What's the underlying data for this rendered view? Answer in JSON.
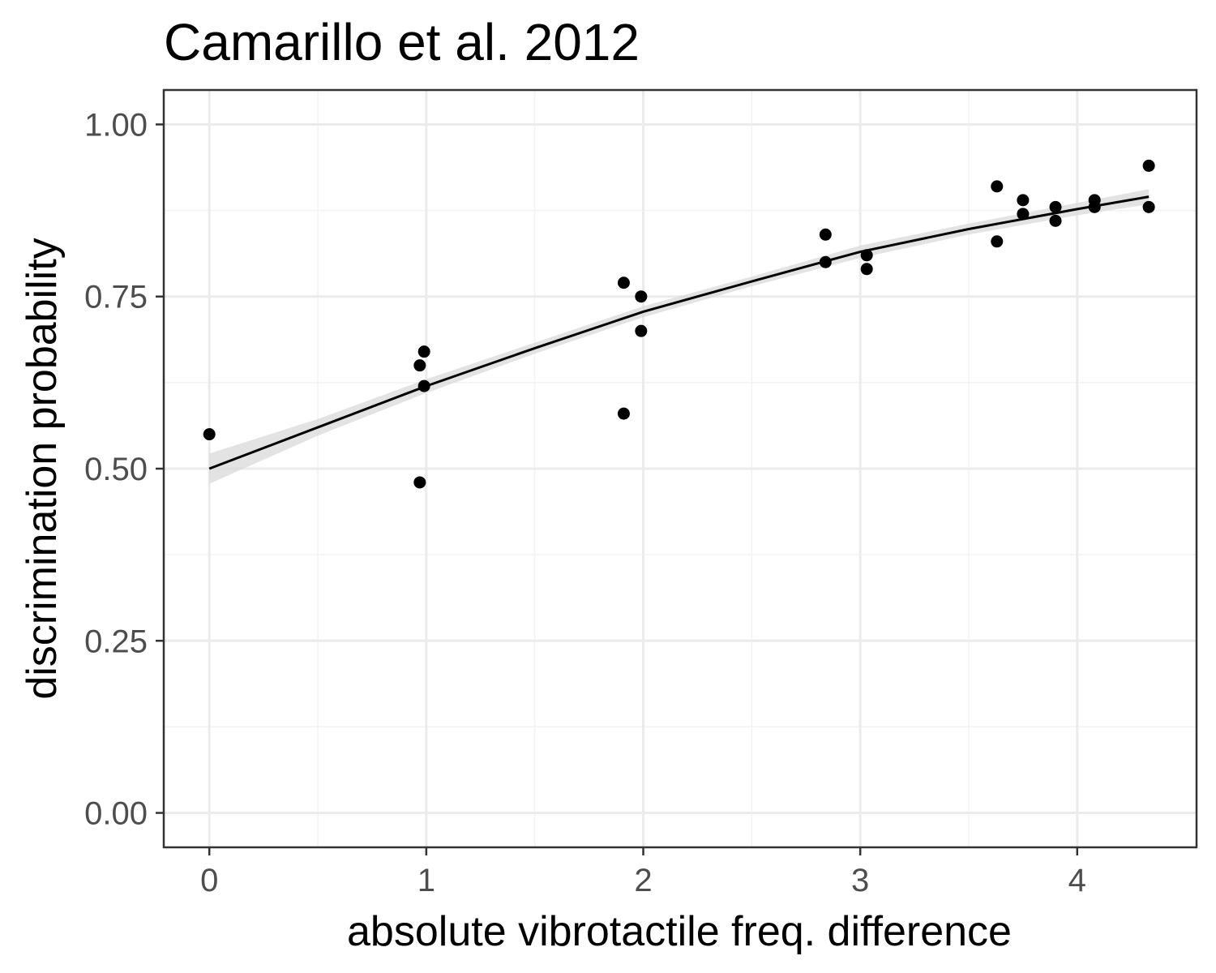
{
  "chart_data": {
    "type": "scatter",
    "title": "Camarillo et al. 2012",
    "xlabel": "absolute vibrotactile freq. difference",
    "ylabel": "discrimination probability",
    "xlim": [
      -0.21,
      4.55
    ],
    "ylim": [
      -0.05,
      1.05
    ],
    "x_ticks": [
      0,
      1,
      2,
      3,
      4
    ],
    "x_tick_labels": [
      "0",
      "1",
      "2",
      "3",
      "4"
    ],
    "y_ticks": [
      0,
      0.25,
      0.5,
      0.75,
      1
    ],
    "y_tick_labels": [
      "0.00",
      "0.25",
      "0.50",
      "0.75",
      "1.00"
    ],
    "grid": true,
    "legend": "none",
    "points": [
      {
        "x": 0.0,
        "y": 0.55
      },
      {
        "x": 0.97,
        "y": 0.65
      },
      {
        "x": 0.97,
        "y": 0.48
      },
      {
        "x": 0.99,
        "y": 0.67
      },
      {
        "x": 0.99,
        "y": 0.62
      },
      {
        "x": 1.91,
        "y": 0.77
      },
      {
        "x": 1.91,
        "y": 0.58
      },
      {
        "x": 1.99,
        "y": 0.75
      },
      {
        "x": 1.99,
        "y": 0.7
      },
      {
        "x": 2.84,
        "y": 0.84
      },
      {
        "x": 2.84,
        "y": 0.8
      },
      {
        "x": 3.03,
        "y": 0.81
      },
      {
        "x": 3.03,
        "y": 0.79
      },
      {
        "x": 3.63,
        "y": 0.91
      },
      {
        "x": 3.63,
        "y": 0.83
      },
      {
        "x": 3.75,
        "y": 0.89
      },
      {
        "x": 3.75,
        "y": 0.87
      },
      {
        "x": 3.9,
        "y": 0.88
      },
      {
        "x": 3.9,
        "y": 0.86
      },
      {
        "x": 4.08,
        "y": 0.89
      },
      {
        "x": 4.08,
        "y": 0.88
      },
      {
        "x": 4.33,
        "y": 0.94
      },
      {
        "x": 4.33,
        "y": 0.88
      }
    ],
    "fit_line": {
      "x": [
        0,
        0.5,
        1,
        1.5,
        2,
        2.5,
        3,
        3.5,
        4,
        4.33
      ],
      "y": [
        0.5,
        0.56,
        0.62,
        0.675,
        0.728,
        0.772,
        0.815,
        0.848,
        0.877,
        0.895
      ],
      "ci_lower": [
        0.478,
        0.548,
        0.61,
        0.667,
        0.72,
        0.765,
        0.806,
        0.84,
        0.868,
        0.884
      ],
      "ci_upper": [
        0.522,
        0.572,
        0.63,
        0.683,
        0.736,
        0.779,
        0.824,
        0.856,
        0.886,
        0.906
      ]
    },
    "colors": {
      "points": "#000000",
      "line": "#000000",
      "ci_band": "#d9d9d9",
      "grid_major": "#ebebeb",
      "grid_minor": "#f2f2f2",
      "panel_border": "#333333",
      "tick_label": "#4d4d4d"
    }
  }
}
